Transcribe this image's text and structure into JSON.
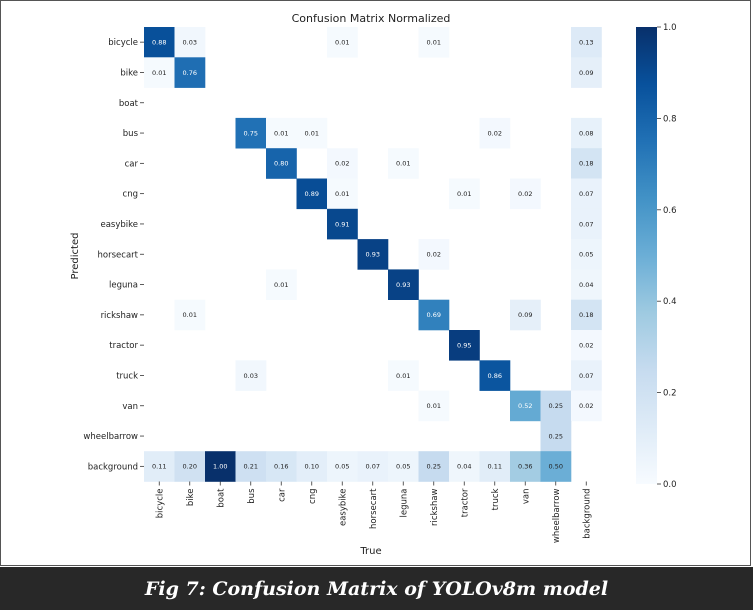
{
  "caption": "Fig 7: Confusion Matrix of YOLOv8m model",
  "colormap": {
    "low": "#f7fbff",
    "mid": "#6baed6",
    "high": "#08306b"
  },
  "chart_data": {
    "type": "heatmap",
    "title": "Confusion Matrix Normalized",
    "xlabel": "True",
    "ylabel": "Predicted",
    "classes": [
      "bicycle",
      "bike",
      "boat",
      "bus",
      "car",
      "cng",
      "easybike",
      "horsecart",
      "leguna",
      "rickshaw",
      "tractor",
      "truck",
      "van",
      "wheelbarrow",
      "background"
    ],
    "matrix": [
      [
        0.88,
        0.03,
        null,
        null,
        null,
        null,
        0.01,
        null,
        null,
        0.01,
        null,
        null,
        null,
        null,
        0.13
      ],
      [
        0.01,
        0.76,
        null,
        null,
        null,
        null,
        null,
        null,
        null,
        null,
        null,
        null,
        null,
        null,
        0.09
      ],
      [
        null,
        null,
        null,
        null,
        null,
        null,
        null,
        null,
        null,
        null,
        null,
        null,
        null,
        null,
        null
      ],
      [
        null,
        null,
        null,
        0.75,
        0.01,
        0.01,
        null,
        null,
        null,
        null,
        null,
        0.02,
        null,
        null,
        0.08
      ],
      [
        null,
        null,
        null,
        null,
        0.8,
        null,
        0.02,
        null,
        0.01,
        null,
        null,
        null,
        null,
        null,
        0.18
      ],
      [
        null,
        null,
        null,
        null,
        null,
        0.89,
        0.01,
        null,
        null,
        null,
        0.01,
        null,
        0.02,
        null,
        0.07
      ],
      [
        null,
        null,
        null,
        null,
        null,
        null,
        0.91,
        null,
        null,
        null,
        null,
        null,
        null,
        null,
        0.07
      ],
      [
        null,
        null,
        null,
        null,
        null,
        null,
        null,
        0.93,
        null,
        0.02,
        null,
        null,
        null,
        null,
        0.05
      ],
      [
        null,
        null,
        null,
        null,
        0.01,
        null,
        null,
        null,
        0.93,
        null,
        null,
        null,
        null,
        null,
        0.04
      ],
      [
        null,
        0.01,
        null,
        null,
        null,
        null,
        null,
        null,
        null,
        0.69,
        null,
        null,
        0.09,
        null,
        0.18
      ],
      [
        null,
        null,
        null,
        null,
        null,
        null,
        null,
        null,
        null,
        null,
        0.95,
        null,
        null,
        null,
        0.02
      ],
      [
        null,
        null,
        null,
        0.03,
        null,
        null,
        null,
        null,
        0.01,
        null,
        null,
        0.86,
        null,
        null,
        0.07
      ],
      [
        null,
        null,
        null,
        null,
        null,
        null,
        null,
        null,
        null,
        0.01,
        null,
        null,
        0.52,
        0.25,
        0.02
      ],
      [
        null,
        null,
        null,
        null,
        null,
        null,
        null,
        null,
        null,
        null,
        null,
        null,
        null,
        0.25,
        null
      ],
      [
        0.11,
        0.2,
        1.0,
        0.21,
        0.16,
        0.1,
        0.05,
        0.07,
        0.05,
        0.25,
        0.04,
        0.11,
        0.36,
        0.5,
        null
      ]
    ],
    "value_range": [
      0,
      1
    ],
    "colorbar_ticks": [
      "0.0",
      "0.2",
      "0.4",
      "0.6",
      "0.8",
      "1.0"
    ],
    "colorbar_values": [
      0.0,
      0.2,
      0.4,
      0.6,
      0.8,
      1.0
    ]
  }
}
